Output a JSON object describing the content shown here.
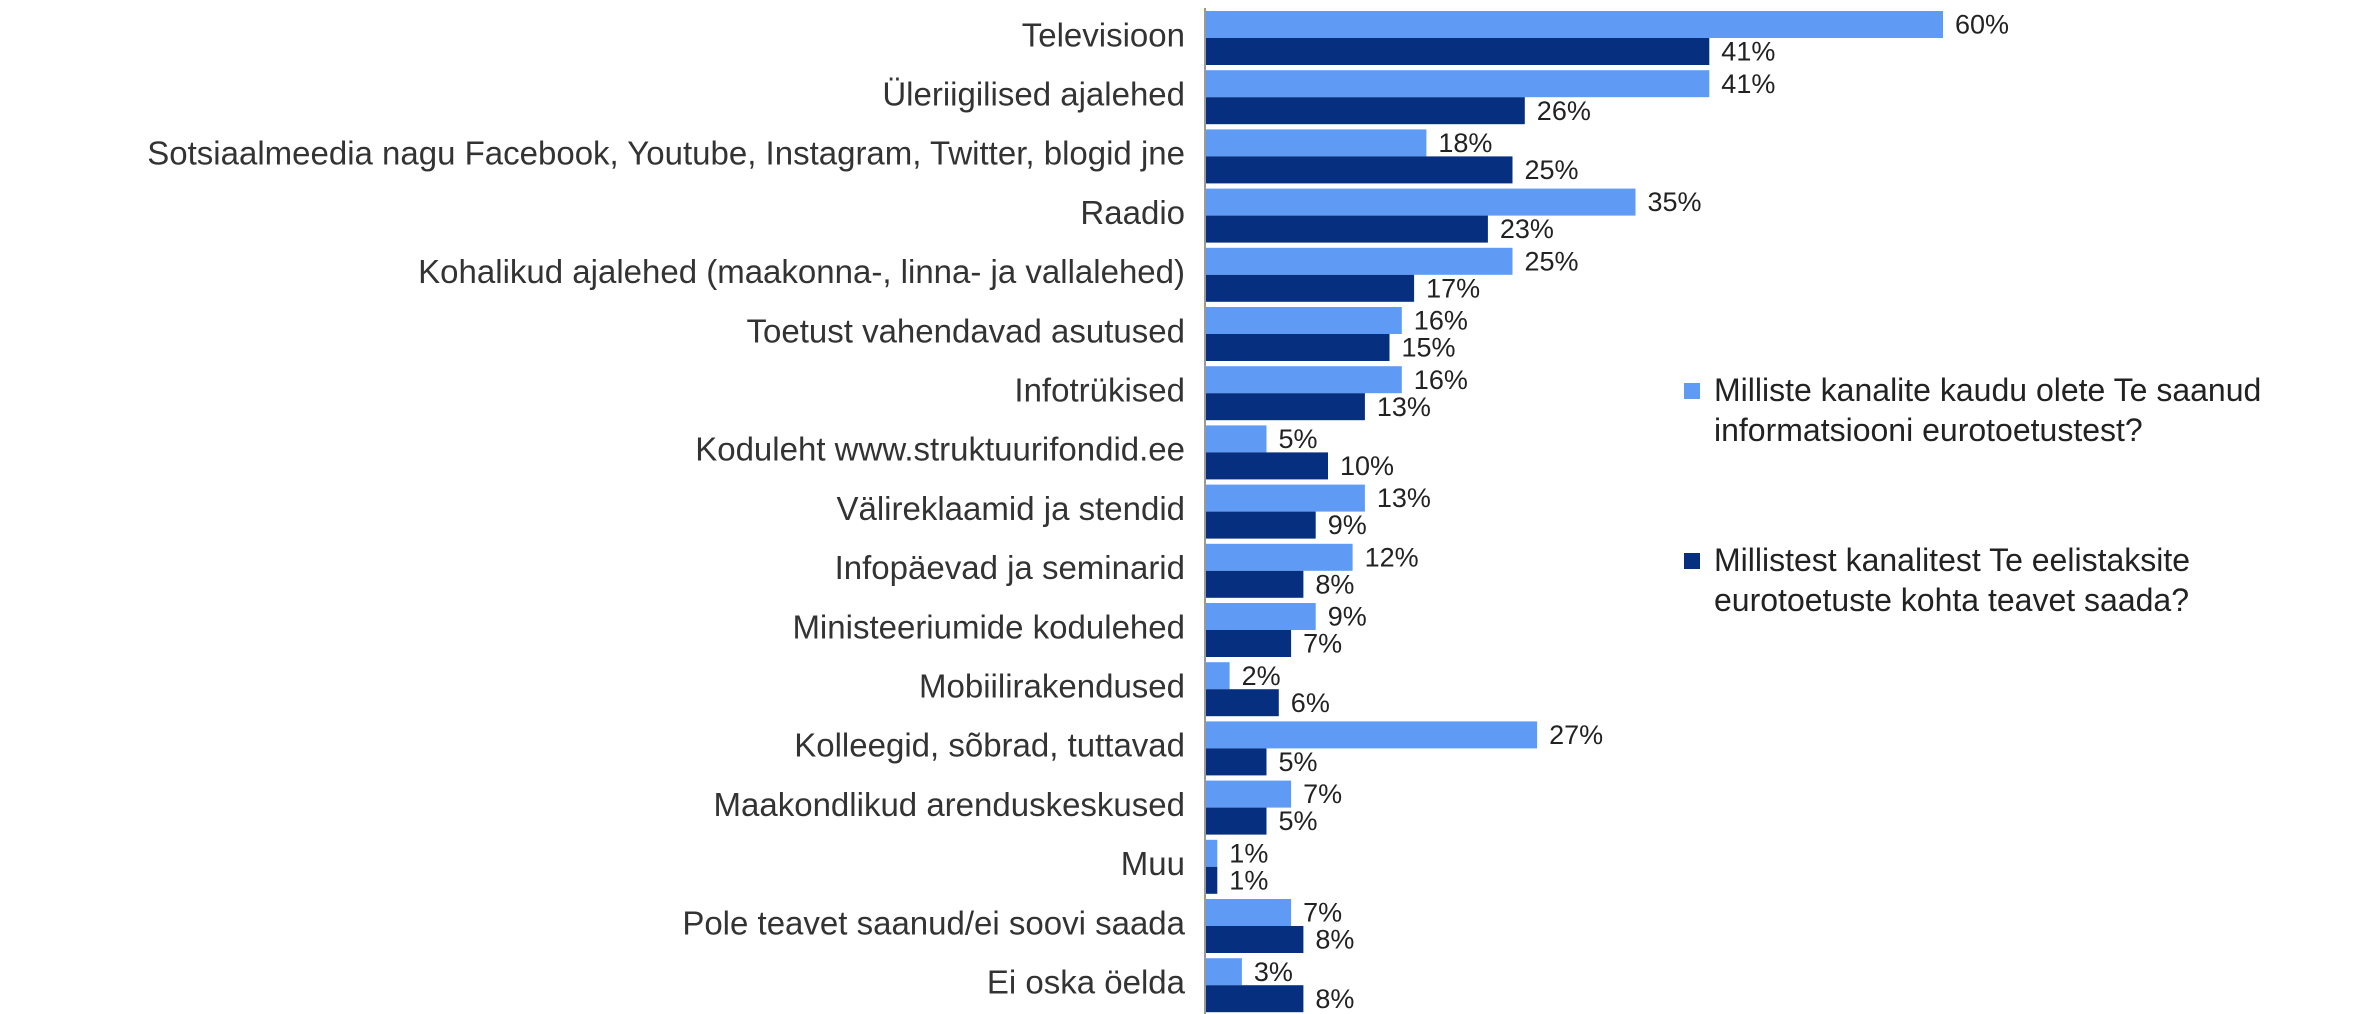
{
  "chart_data": {
    "type": "bar",
    "orientation": "horizontal",
    "categories": [
      "Televisioon",
      "Üleriigilised ajalehed",
      "Sotsiaalmeedia nagu Facebook, Youtube, Instagram, Twitter, blogid jne",
      "Raadio",
      "Kohalikud ajalehed (maakonna-, linna- ja vallalehed)",
      "Toetust vahendavad asutused",
      "Infotrükised",
      "Koduleht www.struktuurifondid.ee",
      "Välireklaamid ja stendid",
      "Infopäevad ja seminarid",
      "Ministeeriumide kodulehed",
      "Mobiilirakendused",
      "Kolleegid, sõbrad, tuttavad",
      "Maakondlikud arenduskeskused",
      "Muu",
      "Pole teavet saanud/ei soovi saada",
      "Ei oska öelda"
    ],
    "series": [
      {
        "name": "Milliste kanalite kaudu olete Te saanud informatsiooni eurotoetustest?",
        "color": "#5f9af5",
        "values": [
          60,
          41,
          18,
          35,
          25,
          16,
          16,
          5,
          13,
          12,
          9,
          2,
          27,
          7,
          1,
          7,
          3
        ],
        "value_labels": [
          "60%",
          "41%",
          "18%",
          "35%",
          "25%",
          "16%",
          "16%",
          "5%",
          "13%",
          "12%",
          "9%",
          "2%",
          "27%",
          "7%",
          "1%",
          "7%",
          "3%"
        ]
      },
      {
        "name": "Millistest kanalitest Te eelistaksite eurotoetuste kohta teavet saada?",
        "color": "#06307f",
        "values": [
          41,
          26,
          25,
          23,
          17,
          15,
          13,
          10,
          9,
          8,
          7,
          6,
          5,
          5,
          1,
          8,
          8
        ],
        "value_labels": [
          "41%",
          "26%",
          "25%",
          "23%",
          "17%",
          "15%",
          "13%",
          "10%",
          "9%",
          "8%",
          "7%",
          "6%",
          "5%",
          "5%",
          "1%",
          "8%",
          "8%"
        ]
      }
    ],
    "legend": "right"
  }
}
